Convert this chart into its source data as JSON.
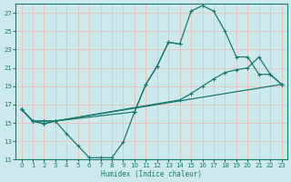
{
  "xlabel": "Humidex (Indice chaleur)",
  "background_color": "#cce9ec",
  "grid_color": "#f0b8b8",
  "line_color": "#1a7a6e",
  "xlim": [
    -0.5,
    23.5
  ],
  "ylim": [
    11,
    28
  ],
  "yticks": [
    11,
    13,
    15,
    17,
    19,
    21,
    23,
    25,
    27
  ],
  "xticks": [
    0,
    1,
    2,
    3,
    4,
    5,
    6,
    7,
    8,
    9,
    10,
    11,
    12,
    13,
    14,
    15,
    16,
    17,
    18,
    19,
    20,
    21,
    22,
    23
  ],
  "line1_x": [
    0,
    1,
    2,
    3,
    4,
    5,
    6,
    7,
    8,
    9,
    10,
    11,
    12,
    13,
    14
  ],
  "line1_y": [
    16.5,
    15.2,
    14.9,
    15.2,
    13.8,
    12.5,
    11.2,
    11.2,
    11.2,
    12.9,
    16.2,
    19.2,
    21.2,
    23.8,
    23.6
  ],
  "line2_x": [
    0,
    1,
    2,
    3,
    10,
    11,
    12,
    13,
    14,
    15,
    16,
    17,
    18,
    19,
    20,
    21,
    22,
    23
  ],
  "line2_y": [
    16.5,
    15.2,
    14.9,
    15.2,
    16.2,
    19.2,
    21.2,
    23.8,
    23.6,
    27.2,
    27.8,
    27.2,
    25.0,
    22.2,
    22.2,
    20.3,
    20.3,
    19.2
  ],
  "line3_x": [
    0,
    1,
    2,
    3,
    23
  ],
  "line3_y": [
    16.5,
    15.2,
    15.2,
    15.2,
    19.2
  ],
  "line4_x": [
    0,
    1,
    2,
    3,
    14,
    15,
    16,
    17,
    18,
    19,
    20,
    21,
    22,
    23
  ],
  "line4_y": [
    16.5,
    15.2,
    15.2,
    15.2,
    17.5,
    18.2,
    19.0,
    19.8,
    20.5,
    20.8,
    21.0,
    22.2,
    20.3,
    19.2
  ]
}
